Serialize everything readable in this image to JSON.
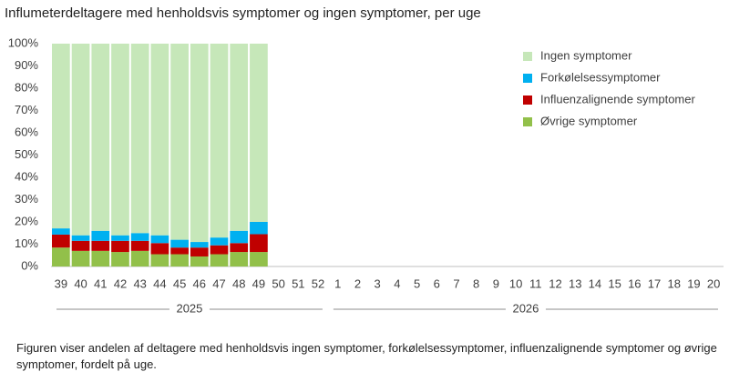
{
  "chart_data": {
    "type": "stacked-bar",
    "title": "Influmeterdeltagere med henholdsvis symptomer og ingen symptomer, per uge",
    "categories": [
      "39",
      "40",
      "41",
      "42",
      "43",
      "44",
      "45",
      "46",
      "47",
      "48",
      "49",
      "50",
      "51",
      "52",
      "1",
      "2",
      "3",
      "4",
      "5",
      "6",
      "7",
      "8",
      "9",
      "10",
      "11",
      "12",
      "13",
      "14",
      "15",
      "16",
      "17",
      "18",
      "19",
      "20"
    ],
    "x_groups": [
      {
        "label": "2025",
        "span": 14
      },
      {
        "label": "2026",
        "span": 20
      }
    ],
    "series": [
      {
        "name": "Øvrige symptomer",
        "color": "#92c04a",
        "values": [
          8.5,
          7,
          7,
          6.5,
          7,
          5.5,
          5.5,
          4.5,
          5.5,
          6.5,
          6.5,
          null,
          null,
          null,
          null,
          null,
          null,
          null,
          null,
          null,
          null,
          null,
          null,
          null,
          null,
          null,
          null,
          null,
          null,
          null,
          null,
          null,
          null,
          null
        ]
      },
      {
        "name": "Influenzalignende symptomer",
        "color": "#c00000",
        "values": [
          5.8,
          4.5,
          4.5,
          5,
          4.5,
          5,
          3,
          4,
          4,
          4,
          8,
          null,
          null,
          null,
          null,
          null,
          null,
          null,
          null,
          null,
          null,
          null,
          null,
          null,
          null,
          null,
          null,
          null,
          null,
          null,
          null,
          null,
          null,
          null
        ]
      },
      {
        "name": "Forkølelsessymptomer",
        "color": "#00b0f0",
        "values": [
          2.8,
          2.5,
          4.5,
          2.5,
          3.5,
          3.5,
          3.5,
          2.5,
          3.5,
          5.5,
          5.5,
          null,
          null,
          null,
          null,
          null,
          null,
          null,
          null,
          null,
          null,
          null,
          null,
          null,
          null,
          null,
          null,
          null,
          null,
          null,
          null,
          null,
          null,
          null
        ]
      },
      {
        "name": "Ingen symptomer",
        "color": "#c6e7b9",
        "values": [
          82.9,
          86,
          84,
          86,
          85,
          86,
          88,
          89,
          87,
          84,
          80,
          null,
          null,
          null,
          null,
          null,
          null,
          null,
          null,
          null,
          null,
          null,
          null,
          null,
          null,
          null,
          null,
          null,
          null,
          null,
          null,
          null,
          null,
          null
        ]
      }
    ],
    "ylim": [
      0,
      100
    ],
    "yticks": [
      {
        "value": 0,
        "label": "0%"
      },
      {
        "value": 10,
        "label": "10%"
      },
      {
        "value": 20,
        "label": "20%"
      },
      {
        "value": 30,
        "label": "30%"
      },
      {
        "value": 40,
        "label": "40%"
      },
      {
        "value": 50,
        "label": "50%"
      },
      {
        "value": 60,
        "label": "60%"
      },
      {
        "value": 70,
        "label": "70%"
      },
      {
        "value": 80,
        "label": "80%"
      },
      {
        "value": 90,
        "label": "90%"
      },
      {
        "value": 100,
        "label": "100%"
      }
    ],
    "legend": "top-right",
    "caption": "Figuren viser andelen af deltagere med henholdsvis ingen symptomer, forkølelsessymptomer, influenzalignende symptomer og øvrige symptomer, fordelt på uge."
  }
}
